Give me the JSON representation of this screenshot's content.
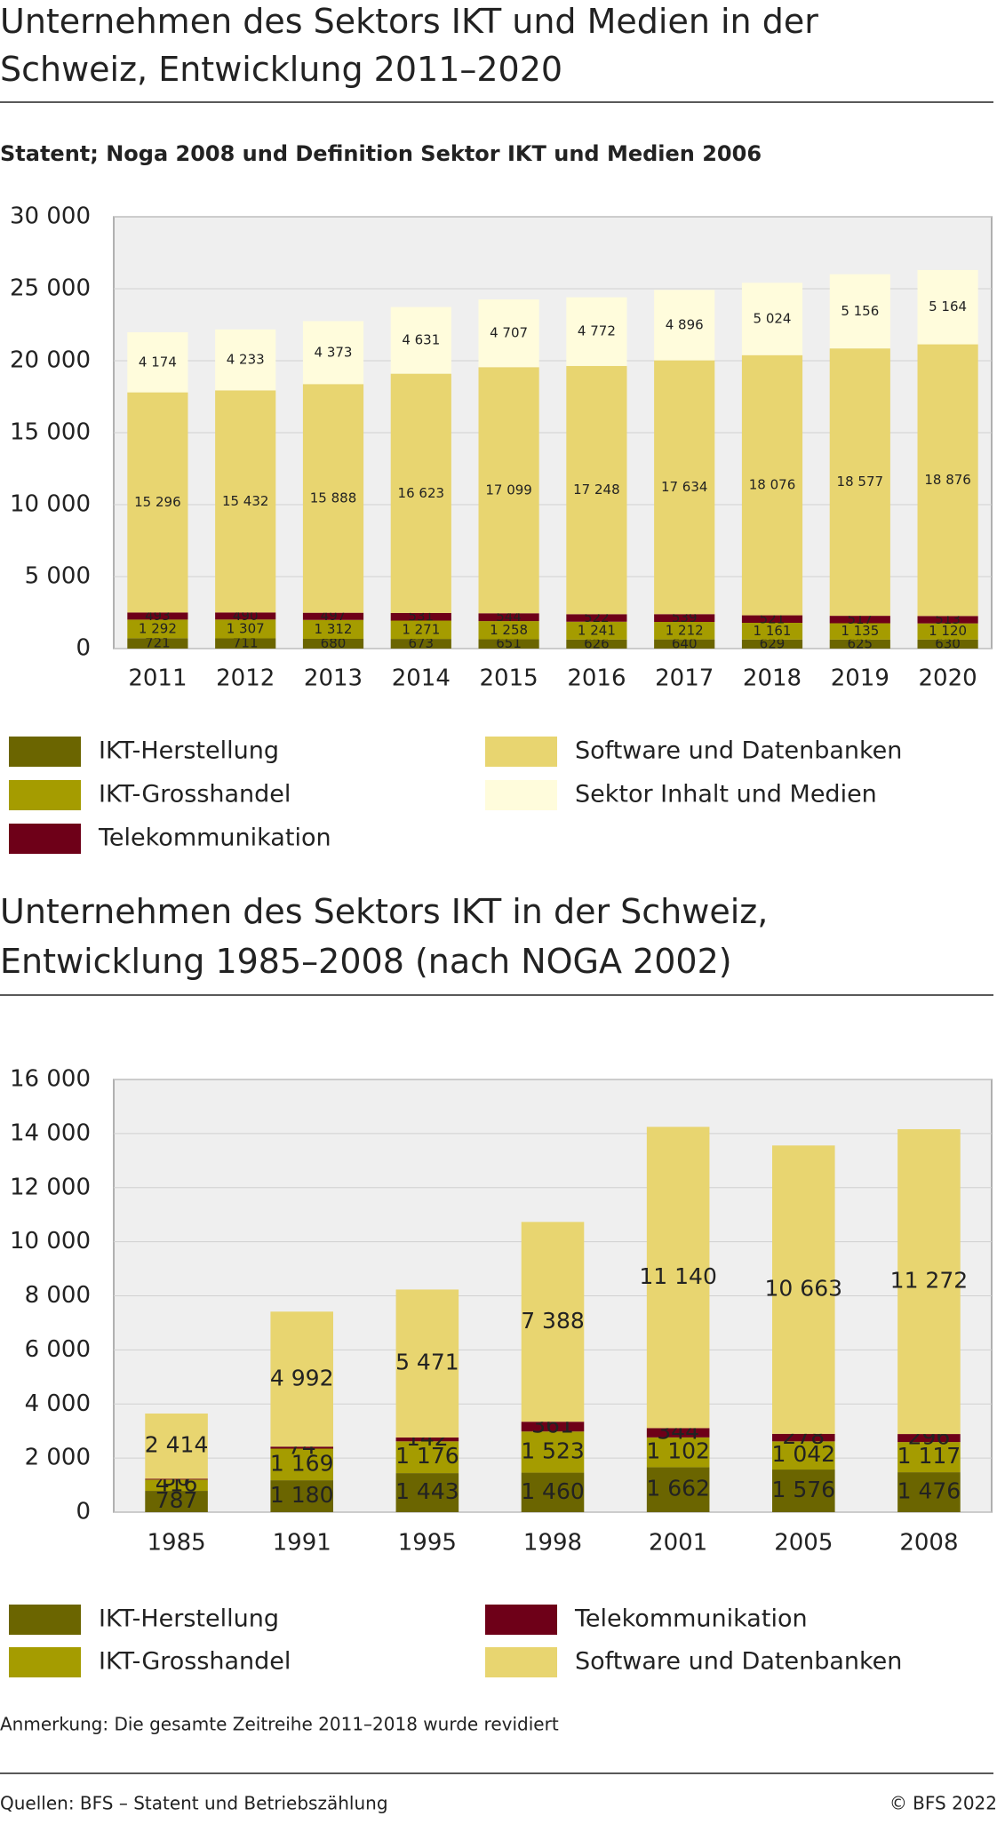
{
  "chart_data": [
    {
      "type": "stacked-bar",
      "title": "Unternehmen des Sektors IKT und Medien in der Schweiz, Entwicklung 2011–2020",
      "subtitle": "Statent; Noga 2008 und Definition Sektor IKT und Medien 2006",
      "categories": [
        "2011",
        "2012",
        "2013",
        "2014",
        "2015",
        "2016",
        "2017",
        "2018",
        "2019",
        "2020"
      ],
      "ylim": [
        0,
        30000
      ],
      "yticks": [
        0,
        {
          "value": 5000,
          "label": "5 000"
        },
        {
          "value": 10000,
          "label": "10 000"
        },
        {
          "value": 15000,
          "label": "15 000"
        },
        {
          "value": 20000,
          "label": "20 000"
        },
        {
          "value": 25000,
          "label": "25 000"
        },
        {
          "value": 30000,
          "label": "30 000"
        }
      ],
      "grid": true,
      "series": [
        {
          "name": "IKT-Herstellung",
          "color": "#6b6500",
          "values": [
            721,
            711,
            680,
            673,
            651,
            626,
            640,
            629,
            625,
            630
          ]
        },
        {
          "name": "IKT-Grosshandel",
          "color": "#a59c00",
          "values": [
            1292,
            1307,
            1312,
            1271,
            1258,
            1241,
            1212,
            1161,
            1135,
            1120
          ],
          "value_labels": [
            "1 292",
            "1 307",
            "1 312",
            "1 271",
            "1 258",
            "1 241",
            "1 212",
            "1 161",
            "1 135",
            "1 120"
          ]
        },
        {
          "name": "Telekommunikation",
          "color": "#6e0018",
          "values": [
            493,
            490,
            497,
            531,
            544,
            522,
            539,
            521,
            517,
            513
          ]
        },
        {
          "name": "Software und Datenbanken",
          "color": "#e8d570",
          "values": [
            15296,
            15432,
            15888,
            16623,
            17099,
            17248,
            17634,
            18076,
            18577,
            18876
          ],
          "value_labels": [
            "15 296",
            "15 432",
            "15 888",
            "16 623",
            "17 099",
            "17 248",
            "17 634",
            "18 076",
            "18 577",
            "18 876"
          ]
        },
        {
          "name": "Sektor Inhalt und Medien",
          "color": "#fffcdc",
          "values": [
            4174,
            4233,
            4373,
            4631,
            4707,
            4772,
            4896,
            5024,
            5156,
            5164
          ],
          "value_labels": [
            "4 174",
            "4 233",
            "4 373",
            "4 631",
            "4 707",
            "4 772",
            "4 896",
            "5 024",
            "5 156",
            "5 164"
          ]
        }
      ]
    },
    {
      "type": "stacked-bar",
      "title": "Unternehmen des Sektors IKT in der Schweiz, Entwicklung 1985–2008 (nach NOGA 2002)",
      "categories": [
        "1985",
        "1991",
        "1995",
        "1998",
        "2001",
        "2005",
        "2008"
      ],
      "ylim": [
        0,
        16000
      ],
      "yticks": [
        0,
        {
          "value": 2000,
          "label": "2 000"
        },
        {
          "value": 4000,
          "label": "4 000"
        },
        {
          "value": 6000,
          "label": "6 000"
        },
        {
          "value": 8000,
          "label": "8 000"
        },
        {
          "value": 10000,
          "label": "10 000"
        },
        {
          "value": 12000,
          "label": "12 000"
        },
        {
          "value": 14000,
          "label": "14 000"
        },
        {
          "value": 16000,
          "label": "16 000"
        }
      ],
      "grid": true,
      "series": [
        {
          "name": "IKT-Herstellung",
          "color": "#6b6500",
          "values": [
            787,
            1180,
            1443,
            1460,
            1662,
            1576,
            1476
          ],
          "value_labels": [
            "787",
            "1 180",
            "1 443",
            "1 460",
            "1 662",
            "1 576",
            "1 476"
          ]
        },
        {
          "name": "IKT-Grosshandel",
          "color": "#a59c00",
          "values": [
            416,
            1169,
            1176,
            1523,
            1102,
            1042,
            1117
          ],
          "value_labels": [
            "416",
            "1 169",
            "1 176",
            "1 523",
            "1 102",
            "1 042",
            "1 117"
          ]
        },
        {
          "name": "Telekommunikation",
          "color": "#6e0018",
          "values": [
            30,
            74,
            142,
            361,
            344,
            278,
            296
          ]
        },
        {
          "name": "Software und Datenbanken",
          "color": "#e8d570",
          "values": [
            2414,
            4992,
            5471,
            7388,
            11140,
            10663,
            11272
          ],
          "value_labels": [
            "2 414",
            "4 992",
            "5 471",
            "7 388",
            "11 140",
            "10 663",
            "11 272"
          ]
        }
      ]
    }
  ],
  "note": "Anmerkung: Die gesamte Zeitreihe 2011–2018 wurde revidiert",
  "source": "Quellen: BFS – Statent und Betriebszählung",
  "copyright": "© BFS 2022"
}
